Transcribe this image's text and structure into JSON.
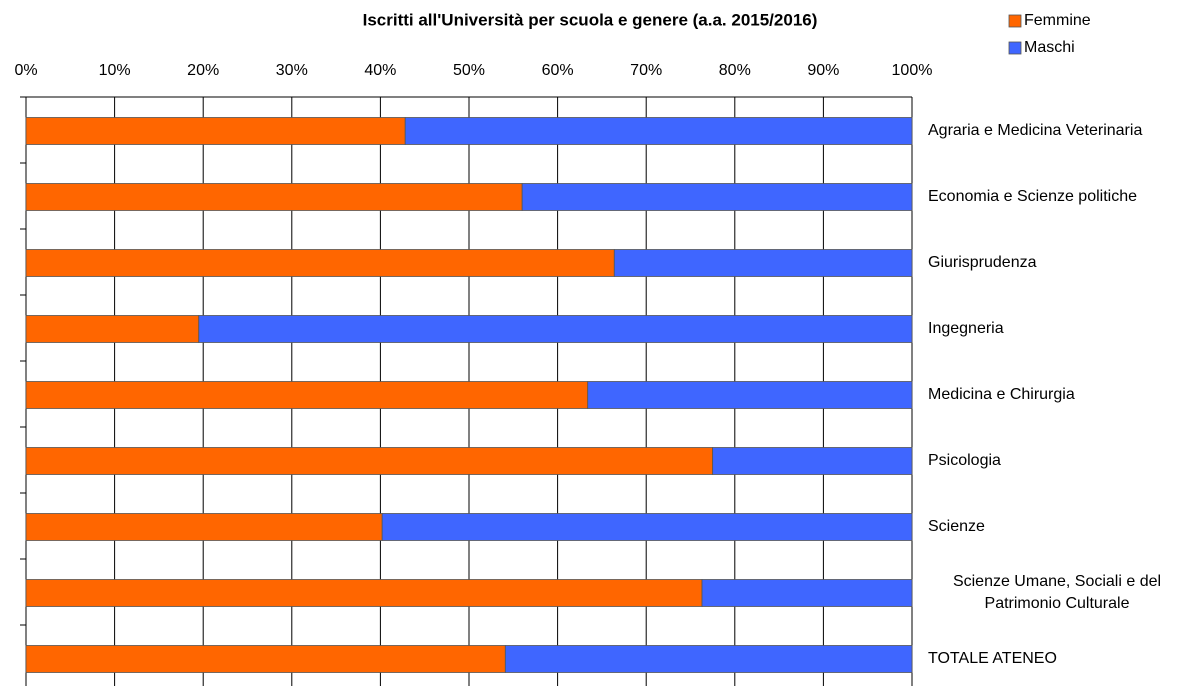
{
  "chart_data": {
    "type": "stacked_barh",
    "title": "Iscritti all'Università per scuola e genere (a.a. 2015/2016)",
    "categories": [
      "Agraria e Medicina Veterinaria",
      "Economia e Scienze politiche",
      "Giurisprudenza",
      "Ingegneria",
      "Medicina e Chirurgia",
      "Psicologia",
      "Scienze",
      "Scienze Umane, Sociali e del Patrimonio Culturale",
      "TOTALE ATENEO"
    ],
    "series": [
      {
        "name": "Femmine",
        "color": "#ff6600",
        "values": [
          42.8,
          56.0,
          66.4,
          19.5,
          63.4,
          77.5,
          40.2,
          76.3,
          54.1
        ]
      },
      {
        "name": "Maschi",
        "color": "#3f66ff",
        "values": [
          57.2,
          44.0,
          33.6,
          80.5,
          36.6,
          22.5,
          59.8,
          23.7,
          45.9
        ]
      }
    ],
    "xlim": [
      0,
      100
    ],
    "xticks": [
      {
        "value": 0,
        "label": "0%"
      },
      {
        "value": 10,
        "label": "10%"
      },
      {
        "value": 20,
        "label": "20%"
      },
      {
        "value": 30,
        "label": "30%"
      },
      {
        "value": 40,
        "label": "40%"
      },
      {
        "value": 50,
        "label": "50%"
      },
      {
        "value": 60,
        "label": "60%"
      },
      {
        "value": 70,
        "label": "70%"
      },
      {
        "value": 80,
        "label": "80%"
      },
      {
        "value": 90,
        "label": "90%"
      },
      {
        "value": 100,
        "label": "100%"
      }
    ],
    "grid": true,
    "legend": "top-right"
  }
}
